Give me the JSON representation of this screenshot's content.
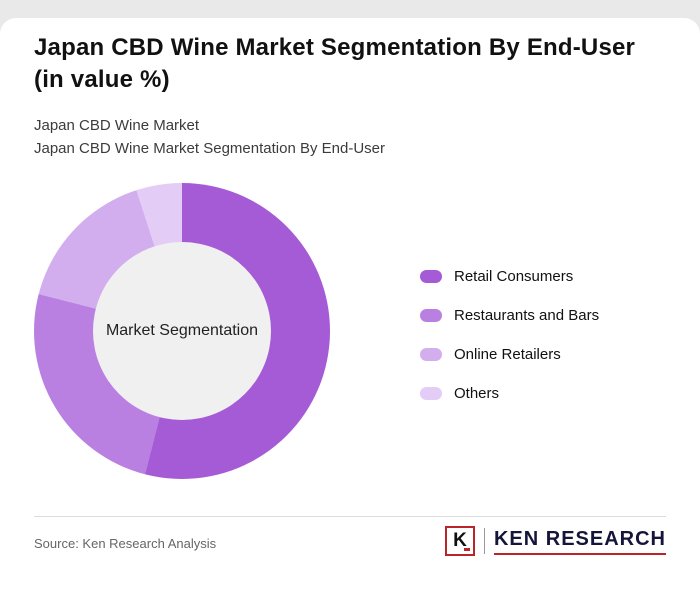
{
  "header": {
    "title_line1": "Japan CBD Wine Market Segmentation By End-User",
    "title_line2": "(in value %)",
    "subtitle_line1": "Japan CBD Wine Market",
    "subtitle_line2": "Japan CBD Wine Market Segmentation By End-User"
  },
  "chart_data": {
    "type": "pie",
    "title": "Japan CBD Wine Market Segmentation By End-User (in value %)",
    "center_label": "Market Segmentation",
    "legend_position": "right",
    "donut": true,
    "categories": [
      "Retail Consumers",
      "Restaurants and Bars",
      "Online Retailers",
      "Others"
    ],
    "values": [
      54,
      25,
      16,
      5
    ],
    "segments": [
      {
        "label": "Retail Consumers",
        "value": 54,
        "color": "#a55ad6"
      },
      {
        "label": "Restaurants and Bars",
        "value": 25,
        "color": "#b980e2"
      },
      {
        "label": "Online Retailers",
        "value": 16,
        "color": "#d2aeee"
      },
      {
        "label": "Others",
        "value": 5,
        "color": "#e3ccf6"
      }
    ]
  },
  "footer": {
    "source": "Source: Ken Research Analysis",
    "logo_letter": "K",
    "logo_text": "KEN RESEARCH"
  }
}
